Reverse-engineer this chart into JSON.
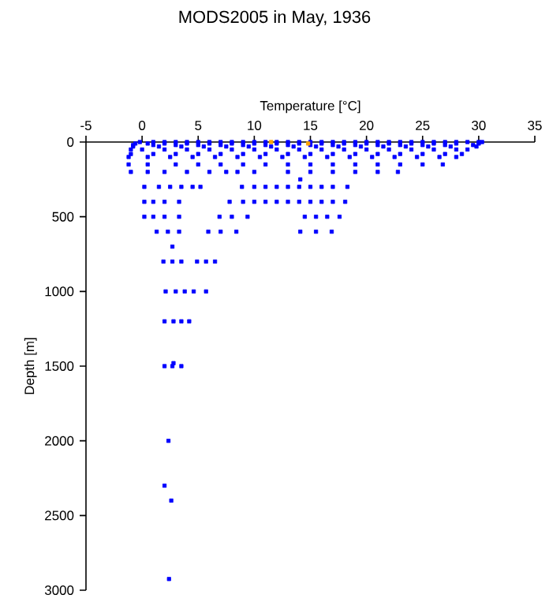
{
  "chart_data": {
    "type": "scatter",
    "title": "MODS2005 in May, 1936",
    "xlabel": "Temperature [°C]",
    "ylabel": "Depth [m]",
    "xlim": [
      -5,
      35
    ],
    "xticks": [
      -5,
      0,
      5,
      10,
      15,
      20,
      25,
      30,
      35
    ],
    "ylim": [
      3000,
      0
    ],
    "yticks": [
      0,
      500,
      1000,
      1500,
      2000,
      2500,
      3000
    ],
    "marker": "square",
    "grid": false,
    "series": [
      {
        "color": "#0000ff",
        "x": [
          -0.2,
          1,
          2,
          3,
          4,
          5,
          6,
          7,
          8,
          9,
          10,
          11,
          12,
          13,
          14,
          15,
          16,
          17,
          18,
          19,
          20,
          21,
          22,
          23,
          24,
          25,
          26,
          27,
          28,
          29,
          30,
          30.3,
          -0.6,
          0.5,
          2,
          4,
          6,
          8,
          10,
          12,
          14,
          16,
          18,
          20,
          22,
          24,
          26,
          28,
          30,
          -0.8,
          1,
          3,
          5,
          7,
          9,
          11,
          13,
          15,
          17,
          19,
          21,
          23,
          25,
          27,
          29.5,
          -0.8,
          1.5,
          3.5,
          5.5,
          7.5,
          9.5,
          11.5,
          13.5,
          15.5,
          17.5,
          19.5,
          21.5,
          23.5,
          25.5,
          27.5,
          29.8,
          -1,
          0,
          2,
          4,
          6,
          8,
          10,
          12,
          14,
          16,
          18,
          20,
          22,
          24,
          26,
          28,
          29,
          -1,
          1,
          3,
          5,
          7,
          9,
          11,
          13,
          15,
          17,
          19,
          21,
          23,
          25,
          27,
          28.5,
          -1.2,
          0.5,
          2.5,
          4.5,
          6.5,
          8.5,
          10.5,
          12.5,
          14.5,
          16.5,
          18.5,
          20.5,
          22.5,
          24.5,
          26.5,
          28,
          -1.2,
          0.5,
          3,
          5,
          7,
          9,
          11,
          13,
          15,
          17,
          19,
          21,
          23,
          25,
          26.8,
          -1,
          0.5,
          2,
          4,
          6,
          7.5,
          8.5,
          10,
          13,
          15,
          17,
          19,
          21,
          22.8,
          14.1,
          0.2,
          1.5,
          2.5,
          3.5,
          4.5,
          5.2,
          8.9,
          10,
          11,
          12,
          13,
          14,
          15,
          16,
          17,
          18.3,
          0.2,
          1,
          2,
          3.3,
          7.8,
          9,
          10,
          11,
          12,
          13,
          14,
          15,
          16,
          17,
          18.1,
          0.2,
          1,
          2,
          3.3,
          6.9,
          8,
          9.4,
          14.5,
          15.5,
          16.5,
          17.6,
          1.3,
          2.3,
          3.3,
          5.9,
          7,
          8.4,
          14.1,
          15.5,
          16.9,
          2.7,
          1.9,
          2.7,
          3.5,
          4.9,
          5.7,
          6.5,
          2.1,
          3,
          3.8,
          4.6,
          5.7,
          2,
          2.8,
          3.5,
          4.2,
          2.8,
          2,
          2.7,
          3.5,
          2.35,
          2.0,
          2.6,
          2.4
        ],
        "values": [
          0,
          0,
          0,
          0,
          0,
          0,
          0,
          0,
          0,
          0,
          0,
          0,
          0,
          0,
          0,
          0,
          0,
          0,
          0,
          0,
          0,
          0,
          0,
          0,
          0,
          0,
          0,
          0,
          0,
          0,
          0,
          0,
          10,
          10,
          10,
          10,
          10,
          10,
          10,
          10,
          10,
          10,
          10,
          10,
          10,
          10,
          10,
          10,
          10,
          20,
          20,
          20,
          20,
          20,
          20,
          20,
          20,
          20,
          20,
          20,
          20,
          20,
          20,
          20,
          20,
          30,
          30,
          30,
          30,
          30,
          30,
          30,
          30,
          30,
          30,
          30,
          30,
          30,
          30,
          30,
          30,
          50,
          50,
          50,
          50,
          50,
          50,
          50,
          50,
          50,
          50,
          50,
          50,
          50,
          50,
          50,
          50,
          50,
          80,
          80,
          80,
          80,
          80,
          80,
          80,
          80,
          80,
          80,
          80,
          80,
          80,
          80,
          80,
          80,
          100,
          100,
          100,
          100,
          100,
          100,
          100,
          100,
          100,
          100,
          100,
          100,
          100,
          100,
          100,
          100,
          150,
          150,
          150,
          150,
          150,
          150,
          150,
          150,
          150,
          150,
          150,
          150,
          150,
          150,
          150,
          200,
          200,
          200,
          200,
          200,
          200,
          200,
          200,
          200,
          200,
          200,
          200,
          200,
          200,
          250,
          300,
          300,
          300,
          300,
          300,
          300,
          300,
          300,
          300,
          300,
          300,
          300,
          300,
          300,
          300,
          300,
          400,
          400,
          400,
          400,
          400,
          400,
          400,
          400,
          400,
          400,
          400,
          400,
          400,
          400,
          400,
          500,
          500,
          500,
          500,
          500,
          500,
          500,
          500,
          500,
          500,
          500,
          600,
          600,
          600,
          600,
          600,
          600,
          600,
          600,
          600,
          700,
          800,
          800,
          800,
          800,
          800,
          800,
          1000,
          1000,
          1000,
          1000,
          1000,
          1200,
          1200,
          1200,
          1200,
          1480,
          1500,
          1500,
          1500,
          2000,
          2300,
          2400,
          2925
        ]
      },
      {
        "color": "#ffa500",
        "x": [
          11.5,
          14.8
        ],
        "values": [
          0,
          10
        ]
      }
    ]
  }
}
